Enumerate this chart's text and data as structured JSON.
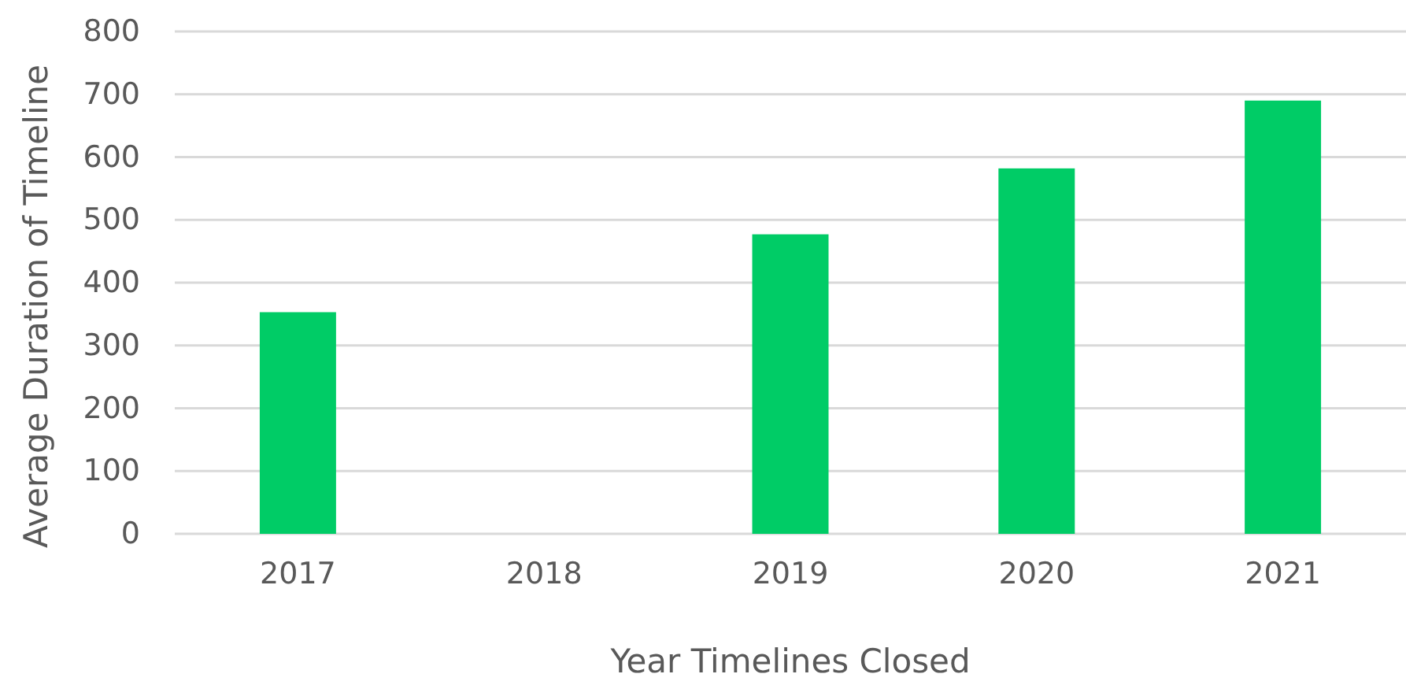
{
  "chart_data": {
    "type": "bar",
    "xlabel": "Year Timelines Closed",
    "ylabel": "Average Duration of Timeline",
    "categories": [
      "2017",
      "2018",
      "2019",
      "2020",
      "2021"
    ],
    "values": [
      353,
      null,
      477,
      582,
      690
    ],
    "color": "#00cc66",
    "ylim": [
      0,
      800
    ],
    "yticks": [
      0,
      100,
      200,
      300,
      400,
      500,
      600,
      700,
      800
    ],
    "grid": "y"
  }
}
